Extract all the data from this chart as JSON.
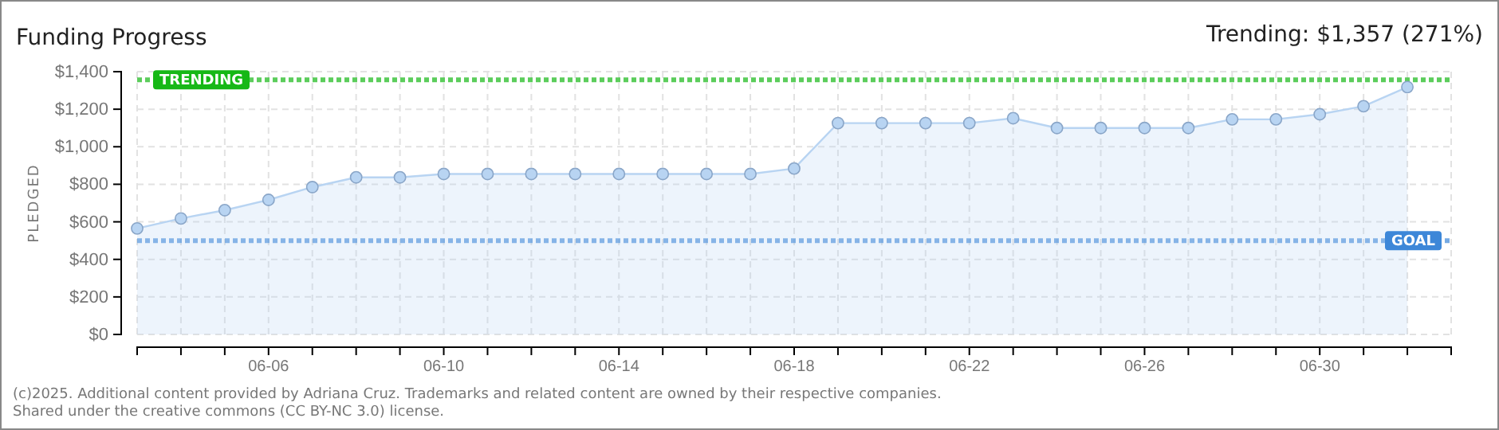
{
  "chart_data": {
    "type": "area",
    "title": "Funding Progress",
    "subtitle": "Trending: $1,357 (271%)",
    "ylabel": "PLEDGED",
    "x": [
      "2025-06-03",
      "2025-06-04",
      "2025-06-05",
      "2025-06-06",
      "2025-06-07",
      "2025-06-08",
      "2025-06-09",
      "2025-06-10",
      "2025-06-11",
      "2025-06-12",
      "2025-06-13",
      "2025-06-14",
      "2025-06-15",
      "2025-06-16",
      "2025-06-17",
      "2025-06-18",
      "2025-06-19",
      "2025-06-20",
      "2025-06-21",
      "2025-06-22",
      "2025-06-23",
      "2025-06-24",
      "2025-06-25",
      "2025-06-26",
      "2025-06-27",
      "2025-06-28",
      "2025-06-29",
      "2025-06-30",
      "2025-07-01",
      "2025-07-02"
    ],
    "series": [
      {
        "color": "#b8d4f2",
        "values": [
          565,
          618,
          662,
          717,
          785,
          837,
          837,
          855,
          855,
          855,
          855,
          855,
          855,
          855,
          855,
          884,
          1126,
          1126,
          1126,
          1126,
          1152,
          1100,
          1100,
          1100,
          1100,
          1146,
          1146,
          1173,
          1216,
          1318
        ]
      }
    ],
    "xlim": [
      "2025-06-03",
      "2025-07-03"
    ],
    "xticks": [
      {
        "value": "2025-06-03",
        "label": null
      },
      {
        "value": "2025-06-04",
        "label": null
      },
      {
        "value": "2025-06-05",
        "label": null
      },
      {
        "value": "2025-06-06",
        "label": "06-06"
      },
      {
        "value": "2025-06-07",
        "label": null
      },
      {
        "value": "2025-06-08",
        "label": null
      },
      {
        "value": "2025-06-09",
        "label": null
      },
      {
        "value": "2025-06-10",
        "label": "06-10"
      },
      {
        "value": "2025-06-11",
        "label": null
      },
      {
        "value": "2025-06-12",
        "label": null
      },
      {
        "value": "2025-06-13",
        "label": null
      },
      {
        "value": "2025-06-14",
        "label": "06-14"
      },
      {
        "value": "2025-06-15",
        "label": null
      },
      {
        "value": "2025-06-16",
        "label": null
      },
      {
        "value": "2025-06-17",
        "label": null
      },
      {
        "value": "2025-06-18",
        "label": "06-18"
      },
      {
        "value": "2025-06-19",
        "label": null
      },
      {
        "value": "2025-06-20",
        "label": null
      },
      {
        "value": "2025-06-21",
        "label": null
      },
      {
        "value": "2025-06-22",
        "label": "06-22"
      },
      {
        "value": "2025-06-23",
        "label": null
      },
      {
        "value": "2025-06-24",
        "label": null
      },
      {
        "value": "2025-06-25",
        "label": null
      },
      {
        "value": "2025-06-26",
        "label": "06-26"
      },
      {
        "value": "2025-06-27",
        "label": null
      },
      {
        "value": "2025-06-28",
        "label": null
      },
      {
        "value": "2025-06-29",
        "label": null
      },
      {
        "value": "2025-06-30",
        "label": "06-30"
      },
      {
        "value": "2025-07-01",
        "label": null
      },
      {
        "value": "2025-07-02",
        "label": null
      },
      {
        "value": "2025-07-03",
        "label": null
      }
    ],
    "ylim": [
      0,
      1400
    ],
    "yticks": [
      {
        "value": 0,
        "label": "$0"
      },
      {
        "value": 200,
        "label": "$200"
      },
      {
        "value": 400,
        "label": "$400"
      },
      {
        "value": 600,
        "label": "$600"
      },
      {
        "value": 800,
        "label": "$800"
      },
      {
        "value": 1000,
        "label": "$1,000"
      },
      {
        "value": 1200,
        "label": "$1,200"
      },
      {
        "value": 1400,
        "label": "$1,400"
      }
    ],
    "grid": true,
    "marker": "circle",
    "ref_lines": [
      {
        "axis": "y",
        "value": 1357,
        "label": "TRENDING",
        "color": "#16b816"
      },
      {
        "axis": "y",
        "value": 500,
        "label": "GOAL",
        "color": "#3d87d8"
      }
    ],
    "annotations": [
      "(c)2025. Additional content provided by Adriana Cruz. Trademarks and related content are owned by their respective companies.",
      "Shared under the creative commons (CC BY-NC 3.0) license."
    ]
  }
}
